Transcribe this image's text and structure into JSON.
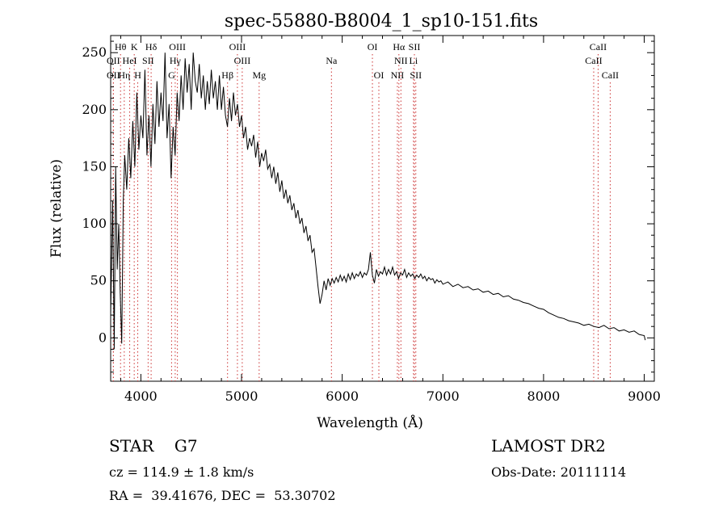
{
  "chart_data": {
    "type": "line",
    "title": "spec-55880-B8004_1_sp10-151.fits",
    "xlabel": "Wavelength (Å)",
    "ylabel": "Flux (relative)",
    "xlim": [
      3700,
      9100
    ],
    "ylim": [
      -38,
      265
    ],
    "xticks": [
      4000,
      5000,
      6000,
      7000,
      8000,
      9000
    ],
    "yticks": [
      0,
      50,
      100,
      150,
      200,
      250
    ],
    "grid": false,
    "series": [
      {
        "points": [
          [
            3700,
            20
          ],
          [
            3720,
            120
          ],
          [
            3735,
            -10
          ],
          [
            3750,
            150
          ],
          [
            3765,
            60
          ],
          [
            3780,
            100
          ],
          [
            3795,
            40
          ],
          [
            3810,
            -5
          ],
          [
            3825,
            120
          ],
          [
            3840,
            160
          ],
          [
            3860,
            130
          ],
          [
            3880,
            175
          ],
          [
            3900,
            140
          ],
          [
            3920,
            190
          ],
          [
            3940,
            150
          ],
          [
            3960,
            215
          ],
          [
            3980,
            165
          ],
          [
            4000,
            195
          ],
          [
            4020,
            175
          ],
          [
            4040,
            235
          ],
          [
            4060,
            160
          ],
          [
            4080,
            195
          ],
          [
            4100,
            150
          ],
          [
            4120,
            205
          ],
          [
            4140,
            170
          ],
          [
            4160,
            225
          ],
          [
            4180,
            185
          ],
          [
            4200,
            215
          ],
          [
            4220,
            190
          ],
          [
            4240,
            250
          ],
          [
            4260,
            175
          ],
          [
            4280,
            205
          ],
          [
            4300,
            140
          ],
          [
            4320,
            185
          ],
          [
            4340,
            160
          ],
          [
            4360,
            215
          ],
          [
            4380,
            190
          ],
          [
            4400,
            230
          ],
          [
            4420,
            200
          ],
          [
            4440,
            245
          ],
          [
            4460,
            215
          ],
          [
            4480,
            240
          ],
          [
            4500,
            200
          ],
          [
            4520,
            250
          ],
          [
            4540,
            225
          ],
          [
            4560,
            215
          ],
          [
            4580,
            240
          ],
          [
            4600,
            210
          ],
          [
            4620,
            230
          ],
          [
            4640,
            200
          ],
          [
            4660,
            225
          ],
          [
            4680,
            205
          ],
          [
            4700,
            235
          ],
          [
            4720,
            210
          ],
          [
            4740,
            225
          ],
          [
            4760,
            200
          ],
          [
            4780,
            230
          ],
          [
            4800,
            200
          ],
          [
            4820,
            220
          ],
          [
            4840,
            195
          ],
          [
            4860,
            185
          ],
          [
            4880,
            210
          ],
          [
            4900,
            190
          ],
          [
            4920,
            215
          ],
          [
            4940,
            195
          ],
          [
            4960,
            205
          ],
          [
            4980,
            185
          ],
          [
            5000,
            195
          ],
          [
            5020,
            175
          ],
          [
            5040,
            185
          ],
          [
            5060,
            165
          ],
          [
            5080,
            175
          ],
          [
            5100,
            168
          ],
          [
            5120,
            178
          ],
          [
            5140,
            158
          ],
          [
            5160,
            172
          ],
          [
            5180,
            150
          ],
          [
            5200,
            162
          ],
          [
            5220,
            155
          ],
          [
            5240,
            165
          ],
          [
            5260,
            148
          ],
          [
            5280,
            152
          ],
          [
            5300,
            140
          ],
          [
            5320,
            150
          ],
          [
            5340,
            135
          ],
          [
            5360,
            145
          ],
          [
            5380,
            128
          ],
          [
            5400,
            138
          ],
          [
            5420,
            122
          ],
          [
            5440,
            130
          ],
          [
            5460,
            118
          ],
          [
            5480,
            125
          ],
          [
            5500,
            112
          ],
          [
            5520,
            118
          ],
          [
            5540,
            105
          ],
          [
            5560,
            112
          ],
          [
            5580,
            100
          ],
          [
            5600,
            105
          ],
          [
            5620,
            92
          ],
          [
            5640,
            98
          ],
          [
            5660,
            85
          ],
          [
            5680,
            90
          ],
          [
            5700,
            75
          ],
          [
            5720,
            78
          ],
          [
            5740,
            62
          ],
          [
            5760,
            45
          ],
          [
            5780,
            30
          ],
          [
            5800,
            38
          ],
          [
            5820,
            50
          ],
          [
            5840,
            42
          ],
          [
            5860,
            52
          ],
          [
            5880,
            46
          ],
          [
            5900,
            52
          ],
          [
            5920,
            48
          ],
          [
            5940,
            53
          ],
          [
            5960,
            49
          ],
          [
            5980,
            55
          ],
          [
            6000,
            50
          ],
          [
            6020,
            54
          ],
          [
            6040,
            49
          ],
          [
            6060,
            56
          ],
          [
            6080,
            51
          ],
          [
            6100,
            57
          ],
          [
            6120,
            52
          ],
          [
            6140,
            56
          ],
          [
            6160,
            54
          ],
          [
            6180,
            58
          ],
          [
            6200,
            53
          ],
          [
            6220,
            57
          ],
          [
            6240,
            55
          ],
          [
            6260,
            60
          ],
          [
            6280,
            75
          ],
          [
            6300,
            55
          ],
          [
            6320,
            48
          ],
          [
            6340,
            60
          ],
          [
            6360,
            54
          ],
          [
            6380,
            58
          ],
          [
            6400,
            56
          ],
          [
            6420,
            62
          ],
          [
            6440,
            55
          ],
          [
            6460,
            60
          ],
          [
            6480,
            56
          ],
          [
            6500,
            62
          ],
          [
            6520,
            55
          ],
          [
            6540,
            58
          ],
          [
            6560,
            52
          ],
          [
            6580,
            57
          ],
          [
            6600,
            55
          ],
          [
            6620,
            60
          ],
          [
            6640,
            53
          ],
          [
            6660,
            57
          ],
          [
            6680,
            54
          ],
          [
            6700,
            56
          ],
          [
            6720,
            52
          ],
          [
            6740,
            55
          ],
          [
            6760,
            53
          ],
          [
            6780,
            56
          ],
          [
            6800,
            52
          ],
          [
            6820,
            54
          ],
          [
            6840,
            50
          ],
          [
            6860,
            53
          ],
          [
            6880,
            51
          ],
          [
            6900,
            52
          ],
          [
            6920,
            48
          ],
          [
            6940,
            51
          ],
          [
            6960,
            49
          ],
          [
            6980,
            50
          ],
          [
            7000,
            47
          ],
          [
            7050,
            49
          ],
          [
            7100,
            45
          ],
          [
            7150,
            47
          ],
          [
            7200,
            44
          ],
          [
            7250,
            45
          ],
          [
            7300,
            42
          ],
          [
            7350,
            43
          ],
          [
            7400,
            40
          ],
          [
            7450,
            41
          ],
          [
            7500,
            38
          ],
          [
            7550,
            39
          ],
          [
            7600,
            36
          ],
          [
            7650,
            37
          ],
          [
            7700,
            34
          ],
          [
            7750,
            33
          ],
          [
            7800,
            31
          ],
          [
            7850,
            30
          ],
          [
            7900,
            28
          ],
          [
            7950,
            26
          ],
          [
            8000,
            25
          ],
          [
            8050,
            22
          ],
          [
            8100,
            20
          ],
          [
            8150,
            18
          ],
          [
            8200,
            17
          ],
          [
            8250,
            15
          ],
          [
            8300,
            14
          ],
          [
            8350,
            13
          ],
          [
            8400,
            11
          ],
          [
            8450,
            12
          ],
          [
            8500,
            10
          ],
          [
            8550,
            9
          ],
          [
            8600,
            11
          ],
          [
            8650,
            8
          ],
          [
            8700,
            9
          ],
          [
            8750,
            6
          ],
          [
            8800,
            7
          ],
          [
            8850,
            5
          ],
          [
            8900,
            6
          ],
          [
            8950,
            3
          ],
          [
            9000,
            2
          ],
          [
            9010,
            -2
          ]
        ]
      }
    ],
    "lines": [
      {
        "label": "Hθ",
        "x": 3798,
        "row": 1
      },
      {
        "label": "K",
        "x": 3934,
        "row": 1
      },
      {
        "label": "Hδ",
        "x": 4102,
        "row": 1
      },
      {
        "label": "OIII",
        "x": 4363,
        "row": 1
      },
      {
        "label": "OIII",
        "x": 4959,
        "row": 1
      },
      {
        "label": "OI",
        "x": 6300,
        "row": 1
      },
      {
        "label": "Hα",
        "x": 6563,
        "row": 1
      },
      {
        "label": "SII",
        "x": 6717,
        "row": 1
      },
      {
        "label": "CaII",
        "x": 8542,
        "row": 1
      },
      {
        "label": "OII",
        "x": 3727,
        "row": 2
      },
      {
        "label": "HeI",
        "x": 3889,
        "row": 2
      },
      {
        "label": "SII",
        "x": 4072,
        "row": 2
      },
      {
        "label": "Hγ",
        "x": 4341,
        "row": 2
      },
      {
        "label": "OIII",
        "x": 5007,
        "row": 2
      },
      {
        "label": "Na",
        "x": 5893,
        "row": 2
      },
      {
        "label": "NII",
        "x": 6583,
        "row": 2
      },
      {
        "label": "Li",
        "x": 6708,
        "row": 2
      },
      {
        "label": "CaII",
        "x": 8498,
        "row": 2
      },
      {
        "label": "OII",
        "x": 3727,
        "row": 3
      },
      {
        "label": "Hη",
        "x": 3835,
        "row": 3
      },
      {
        "label": "H",
        "x": 3969,
        "row": 3
      },
      {
        "label": "G",
        "x": 4305,
        "row": 3
      },
      {
        "label": "Hβ",
        "x": 4861,
        "row": 3
      },
      {
        "label": "Mg",
        "x": 5175,
        "row": 3
      },
      {
        "label": "OI",
        "x": 6364,
        "row": 3
      },
      {
        "label": "NII",
        "x": 6548,
        "row": 3
      },
      {
        "label": "SII",
        "x": 6731,
        "row": 3
      },
      {
        "label": "CaII",
        "x": 8662,
        "row": 3
      }
    ]
  },
  "footer": {
    "class_text": "STAR    G7",
    "survey": "LAMOST DR2",
    "cz": "cz = 114.9 ± 1.8 km/s",
    "obs_date": "Obs-Date: 20111114",
    "radec": "RA =  39.41676, DEC =  53.30702"
  }
}
